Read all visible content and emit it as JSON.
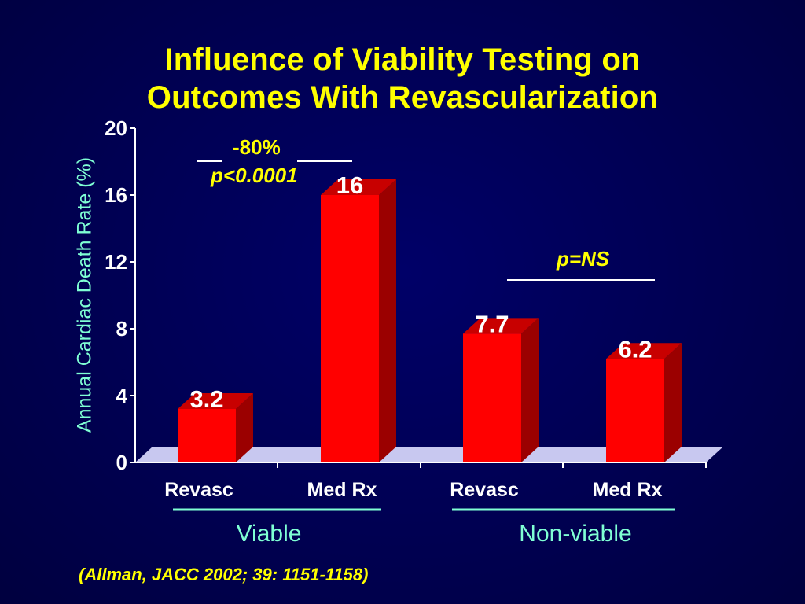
{
  "slide": {
    "title_line1": "Influence of Viability Testing on",
    "title_line2": "Outcomes With Revascularization",
    "citation": "(Allman, JACC 2002; 39: 1151-1158)"
  },
  "annotations": {
    "viable_change": "-80%",
    "viable_p": "p<0.0001",
    "nonviable_p": "p=NS"
  },
  "groups": [
    {
      "label": "Viable"
    },
    {
      "label": "Non-viable"
    }
  ],
  "colors": {
    "bar_front": "#ff0000",
    "bar_side": "#9b0000",
    "bar_top": "#c80000",
    "floor": "#c8c8f0",
    "title": "#ffff00",
    "axis_text": "#ffffff",
    "ylabel": "#7fffd4",
    "group_line": "#7fffd4"
  },
  "chart_data": {
    "type": "bar",
    "categories": [
      "Revasc",
      "Med Rx",
      "Revasc",
      "Med Rx"
    ],
    "groups": [
      "Viable",
      "Viable",
      "Non-viable",
      "Non-viable"
    ],
    "values": [
      3.2,
      16,
      7.7,
      6.2
    ],
    "value_labels": [
      "3.2",
      "16",
      "7.7",
      "6.2"
    ],
    "ylabel": "Annual Cardiac Death Rate (%)",
    "ylim": [
      0,
      20
    ],
    "yticks": [
      0,
      4,
      8,
      12,
      16,
      20
    ],
    "grid": false,
    "three_d": true
  }
}
